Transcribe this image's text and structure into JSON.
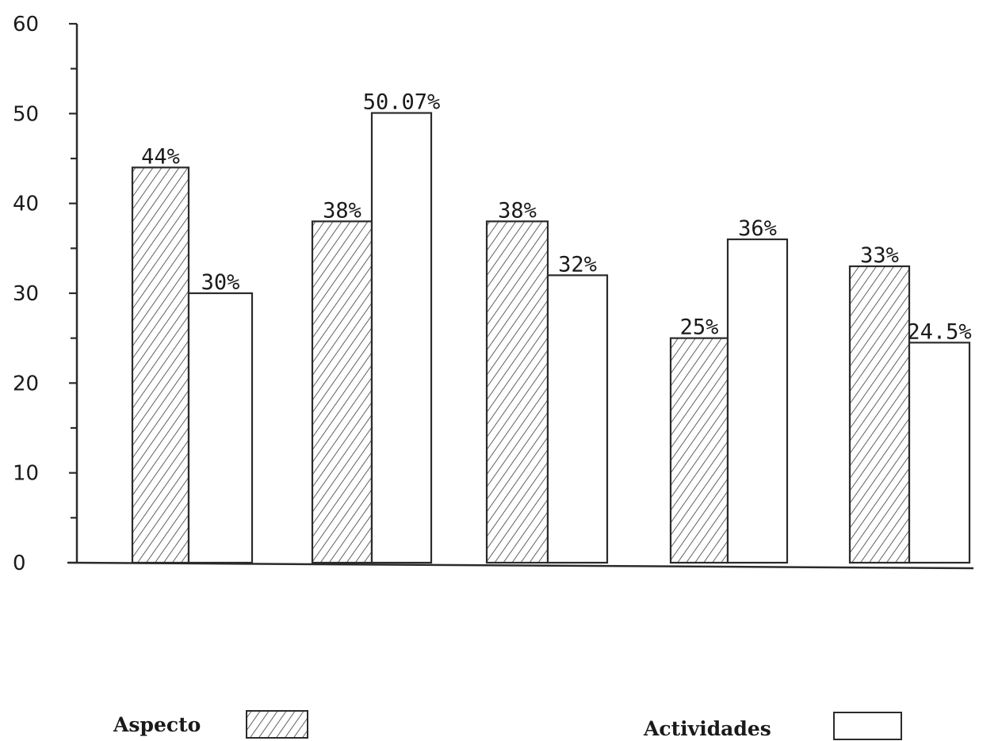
{
  "chart_data": {
    "type": "bar",
    "title": "",
    "xlabel": "",
    "ylabel": "",
    "ylim": [
      0,
      60
    ],
    "yticks": [
      0,
      10,
      20,
      30,
      40,
      50,
      60
    ],
    "ytick_labels": [
      "0",
      "10",
      "20",
      "30",
      "40",
      "50",
      "60"
    ],
    "y_minor_step": 5,
    "grid": false,
    "legend_placement": "bottom",
    "categories": [
      "",
      "",
      "",
      "",
      ""
    ],
    "series": [
      {
        "name": "Aspecto",
        "fill": "hatched",
        "values": [
          44,
          38,
          38,
          25,
          33
        ],
        "labels": [
          "44%",
          "38%",
          "38%",
          "25%",
          "33%"
        ]
      },
      {
        "name": "Actividades",
        "fill": "blank",
        "values": [
          30,
          50.07,
          32,
          36,
          24.5
        ],
        "labels": [
          "30%",
          "50.07%",
          "32%",
          "36%",
          "24.5%"
        ]
      }
    ],
    "colors": {
      "ink": "#2b2b2b",
      "background": "#ffffff"
    }
  }
}
